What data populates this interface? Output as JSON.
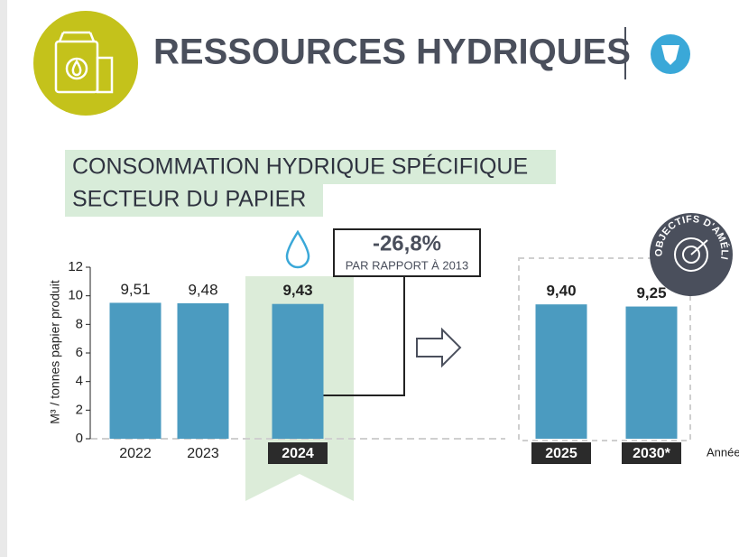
{
  "title": "RESSOURCES HYDRIQUES",
  "chart_data": {
    "type": "bar",
    "subtitle_lines": [
      "CONSOMMATION HYDRIQUE SPÉCIFIQUE",
      "SECTEUR DU PAPIER"
    ],
    "y_label": "M³ / tonnes papier produit",
    "x_label": "Année",
    "annotation": {
      "value_label": "-26,8%",
      "text": "PAR RAPPORT À 2013"
    },
    "badge": "OBJECTIFS D'AMÉLIORATION",
    "categories": [
      "2022",
      "2023",
      "2024",
      "2025",
      "2030*"
    ],
    "values": [
      9.51,
      9.48,
      9.43,
      9.4,
      9.25
    ],
    "value_labels": [
      "9,51",
      "9,48",
      "9,43",
      "9,40",
      "9,25"
    ],
    "color": "#4b9bc0",
    "ylim": [
      0,
      12
    ],
    "yticks": [
      0,
      2,
      4,
      6,
      8,
      10,
      12
    ]
  }
}
